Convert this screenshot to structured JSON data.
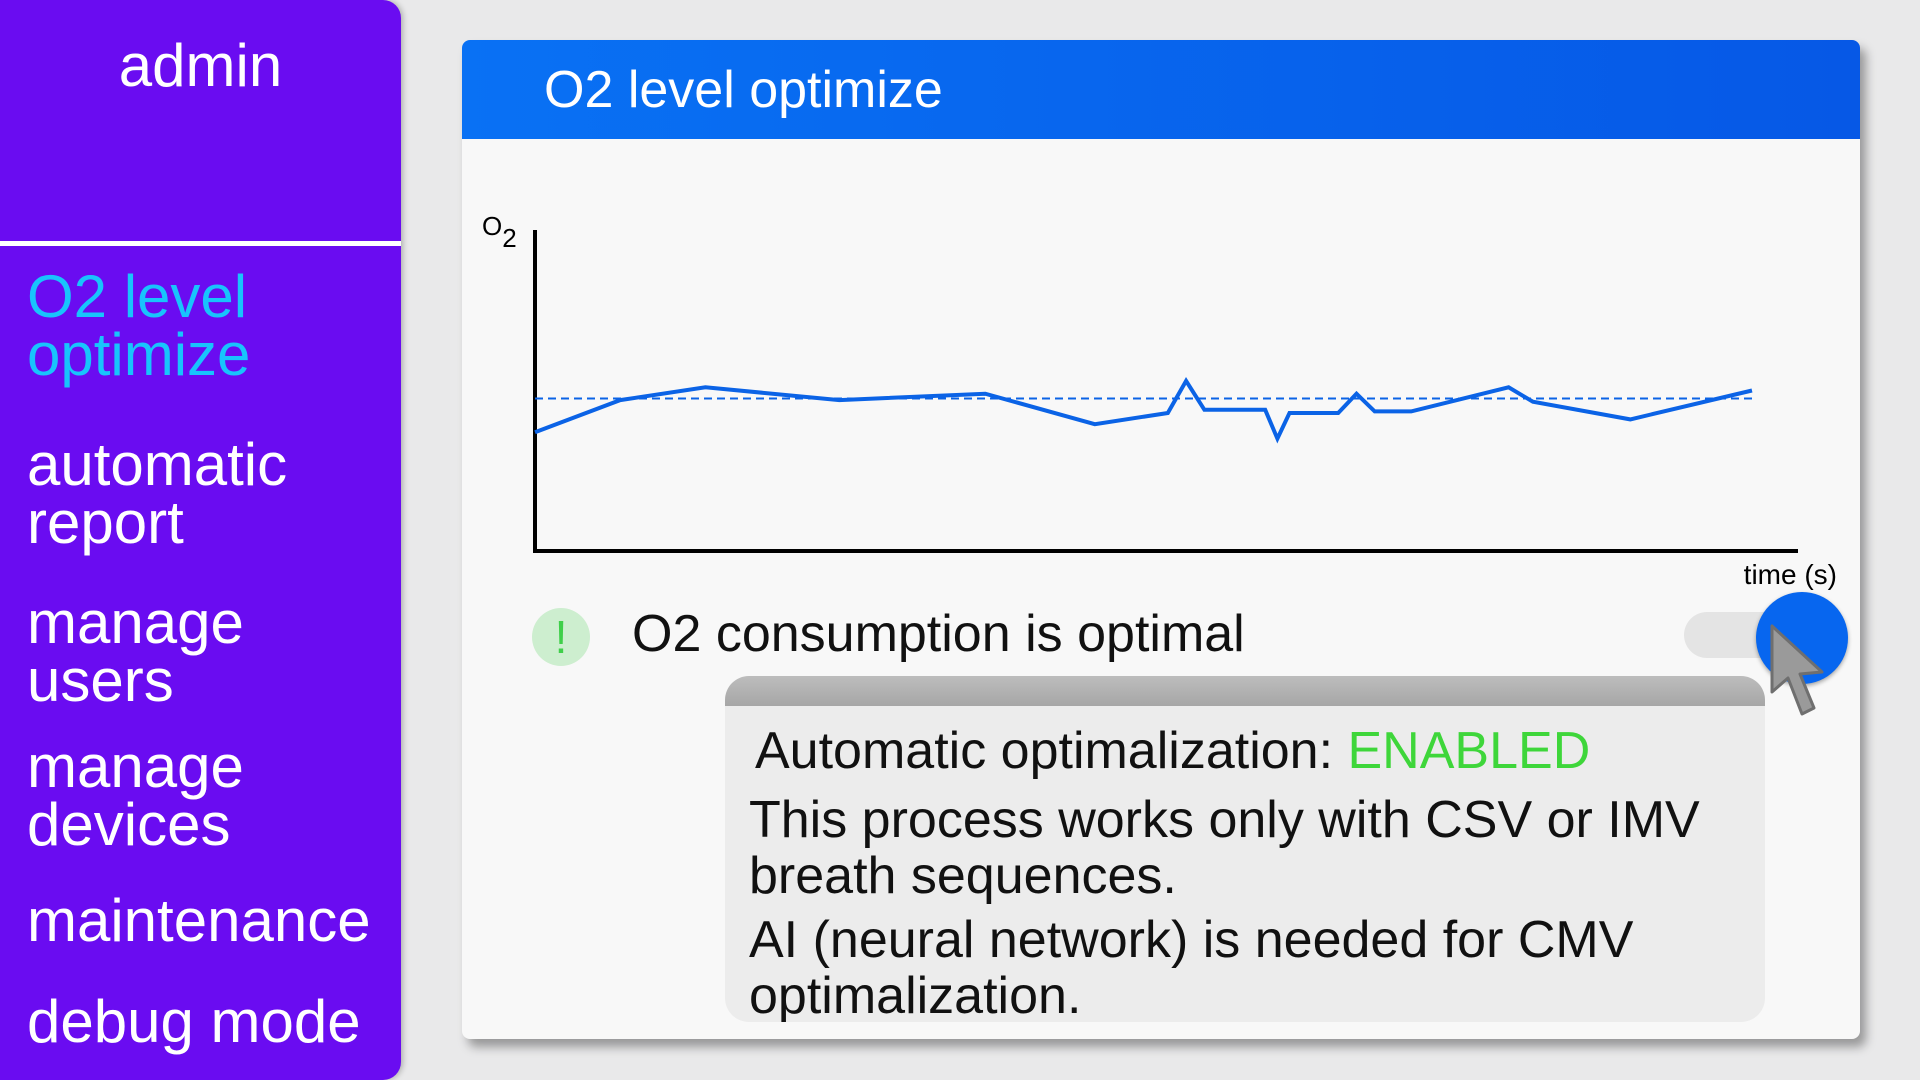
{
  "sidebar": {
    "user": "admin",
    "items": [
      {
        "label": "O2 level optimize",
        "active": true
      },
      {
        "label": "automatic report",
        "active": false
      },
      {
        "label": "manage users",
        "active": false
      },
      {
        "label": "manage devices",
        "active": false
      },
      {
        "label": "maintenance",
        "active": false
      },
      {
        "label": "debug mode",
        "active": false
      }
    ]
  },
  "card": {
    "title": "O2 level optimize"
  },
  "chart_data": {
    "type": "line",
    "ylabel": "O",
    "ylabel_sub": "2",
    "xlabel": "time (s)",
    "xlim": [
      0,
      100
    ],
    "ylim": [
      0,
      100
    ],
    "grid": false,
    "reference_line": {
      "y": 47.5,
      "style": "dashed"
    },
    "series": [
      {
        "color": "#0b63e6",
        "x": [
          0,
          7,
          14,
          25,
          37,
          46,
          52,
          53.5,
          55,
          60,
          61,
          62,
          66,
          67.5,
          69,
          72,
          80,
          82,
          90,
          100
        ],
        "y": [
          37,
          47,
          51,
          47,
          49,
          39.5,
          43,
          53,
          44,
          44,
          35,
          43,
          43,
          49,
          43.5,
          43.5,
          51,
          46.5,
          41,
          50
        ]
      }
    ]
  },
  "status": {
    "icon": "!",
    "text": "O2 consumption is optimal"
  },
  "tooltip": {
    "label": "Automatic optimalization:",
    "state": "ENABLED",
    "para1": "This process works only with CSV or IMV breath sequences.",
    "para2": "AI (neural network) is needed for CMV optimalization."
  },
  "colors": {
    "sidebar_bg": "#6a0cf1",
    "active_item": "#18c4fc",
    "header_bg": "#0658e6",
    "enabled": "#3ed63a",
    "toggle_knob": "#0766ef",
    "line": "#0b63e6"
  },
  "icons": {
    "status": "exclamation-icon",
    "cursor": "mouse-pointer-icon"
  }
}
